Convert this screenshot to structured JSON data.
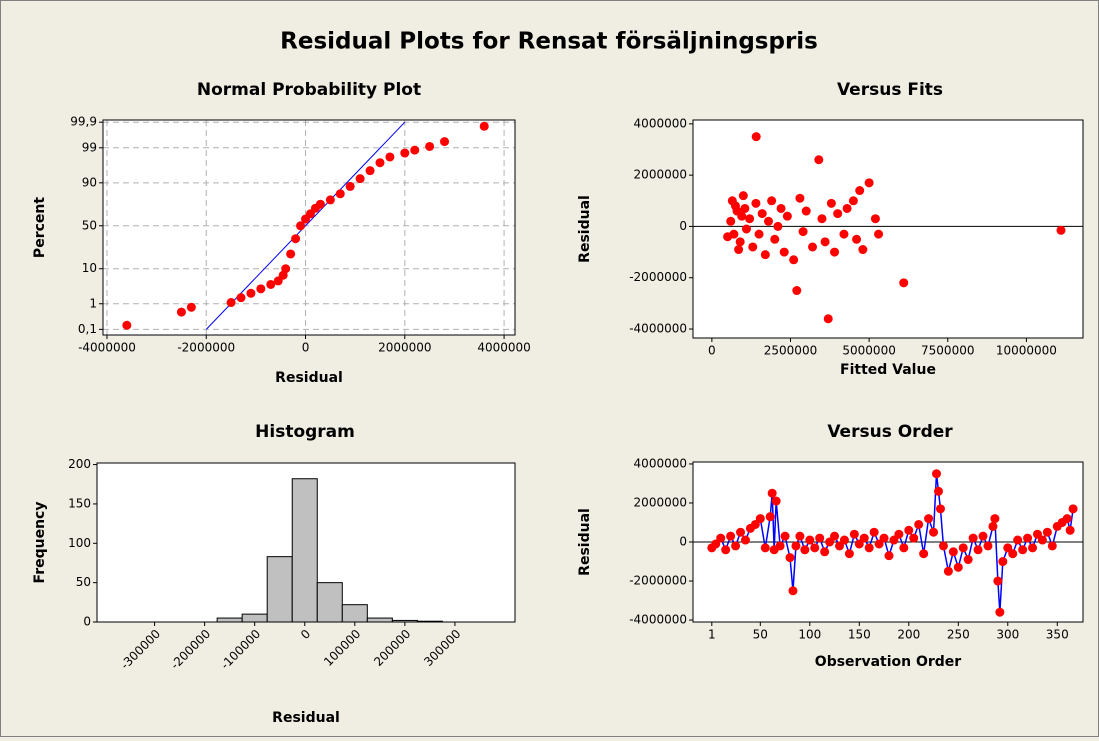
{
  "title": "Residual Plots for Rensat försäljningspris",
  "chart_data": [
    {
      "type": "scatter",
      "title": "Normal Probability Plot",
      "xlabel": "Residual",
      "ylabel": "Percent",
      "yscale": "probability",
      "grid": true,
      "color": "#ff0000",
      "xlim": [
        -4080000,
        4220000
      ],
      "xticks": [
        -4000000,
        -2000000,
        0,
        2000000,
        4000000
      ],
      "ylim": [
        0.056,
        99.92
      ],
      "yticks": [
        {
          "value": 0.1,
          "label": "0,1"
        },
        1,
        10,
        50,
        90,
        99,
        {
          "value": 99.9,
          "label": "99,9"
        }
      ],
      "x": [
        -3600000,
        -2500000,
        -2300000,
        -1500000,
        -1300000,
        -1100000,
        -900000,
        -700000,
        -550000,
        -450000,
        -400000,
        -300000,
        -200000,
        -100000,
        0,
        100000,
        200000,
        300000,
        500000,
        700000,
        900000,
        1100000,
        1300000,
        1500000,
        1700000,
        2000000,
        2200000,
        2500000,
        2800000,
        3600000
      ],
      "y": [
        0.15,
        0.5,
        0.75,
        1.1,
        1.6,
        2.2,
        3,
        4,
        5,
        7,
        10,
        20,
        35,
        50,
        58,
        64,
        70,
        74,
        78,
        83,
        88,
        92,
        95,
        97,
        98,
        98.5,
        98.8,
        99.1,
        99.4,
        99.85
      ],
      "reference_line": {
        "x": [
          -2000000,
          2000000
        ],
        "y": [
          0.1,
          99.9
        ],
        "color": "#0000ff"
      }
    },
    {
      "type": "scatter",
      "title": "Versus Fits",
      "xlabel": "Fitted Value",
      "ylabel": "Residual",
      "color": "#ff0000",
      "xlim": [
        -600000,
        11800000
      ],
      "xticks": [
        0,
        2500000,
        5000000,
        7500000,
        10000000
      ],
      "ylim": [
        -4350000,
        4150000
      ],
      "yticks": [
        -4000000,
        -2000000,
        0,
        2000000,
        4000000
      ],
      "reference_y": 0,
      "x": [
        600000,
        700000,
        800000,
        900000,
        1000000,
        1100000,
        1200000,
        1300000,
        1400000,
        1410000,
        1500000,
        1600000,
        1700000,
        1800000,
        1900000,
        2000000,
        2100000,
        2200000,
        2300000,
        2400000,
        2600000,
        2700000,
        2800000,
        2900000,
        3000000,
        3200000,
        3400000,
        3500000,
        3600000,
        3700000,
        3800000,
        3900000,
        4000000,
        4200000,
        4300000,
        4500000,
        4600000,
        4700000,
        4800000,
        5000000,
        5200000,
        5300000,
        6100000,
        11100000,
        500000,
        650000,
        750000,
        850000,
        950000,
        1050000
      ],
      "y": [
        200000,
        -300000,
        600000,
        -600000,
        1200000,
        -100000,
        300000,
        -800000,
        900000,
        3500000,
        -300000,
        500000,
        -1100000,
        200000,
        1000000,
        -500000,
        0,
        700000,
        -1000000,
        400000,
        -1300000,
        -2500000,
        1100000,
        -200000,
        600000,
        -800000,
        2600000,
        300000,
        -600000,
        -3600000,
        900000,
        -1000000,
        500000,
        -300000,
        700000,
        1000000,
        -500000,
        1400000,
        -900000,
        1700000,
        300000,
        -300000,
        -2200000,
        -150000,
        -400000,
        1000000,
        800000,
        -900000,
        400000,
        700000
      ]
    },
    {
      "type": "histogram",
      "title": "Histogram",
      "xlabel": "Residual",
      "ylabel": "Frequency",
      "color": "#c0c0c0",
      "xtick_rotation": -45,
      "xlim": [
        -415000,
        420000
      ],
      "xticks": [
        -300000,
        -200000,
        -100000,
        0,
        100000,
        200000,
        300000
      ],
      "ylim": [
        0,
        202
      ],
      "yticks": [
        0,
        50,
        100,
        150,
        200
      ],
      "bins": [
        -175000,
        -125000,
        -75000,
        -25000,
        25000,
        75000,
        125000,
        175000,
        225000,
        275000
      ],
      "values": [
        5,
        10,
        83,
        182,
        50,
        22,
        5,
        2,
        1
      ]
    },
    {
      "type": "line",
      "title": "Versus Order",
      "xlabel": "Observation Order",
      "ylabel": "Residual",
      "color": "#ff0000",
      "line_color": "#0000ff",
      "xlim": [
        -18,
        376
      ],
      "xticks": [
        1,
        50,
        100,
        150,
        200,
        250,
        300,
        350
      ],
      "ylim": [
        -4100000,
        4100000
      ],
      "yticks": [
        -4000000,
        -2000000,
        0,
        2000000,
        4000000
      ],
      "reference_y": 0,
      "x": [
        1,
        5,
        10,
        15,
        20,
        25,
        30,
        35,
        40,
        45,
        50,
        55,
        60,
        62,
        64,
        66,
        70,
        75,
        80,
        83,
        86,
        90,
        95,
        100,
        105,
        110,
        115,
        120,
        125,
        130,
        135,
        140,
        145,
        150,
        155,
        160,
        165,
        170,
        175,
        180,
        185,
        190,
        195,
        200,
        205,
        210,
        215,
        220,
        225,
        228,
        230,
        232,
        235,
        240,
        245,
        250,
        255,
        260,
        265,
        270,
        275,
        280,
        285,
        287,
        290,
        292,
        295,
        300,
        305,
        310,
        315,
        320,
        325,
        330,
        335,
        340,
        345,
        350,
        355,
        360,
        363,
        366
      ],
      "y": [
        -300000,
        -100000,
        200000,
        -400000,
        300000,
        -200000,
        500000,
        100000,
        700000,
        900000,
        1200000,
        -300000,
        1300000,
        2500000,
        -400000,
        2100000,
        -200000,
        300000,
        -800000,
        -2500000,
        -200000,
        300000,
        -400000,
        100000,
        -300000,
        200000,
        -500000,
        0,
        300000,
        -200000,
        100000,
        -600000,
        400000,
        -100000,
        200000,
        -300000,
        500000,
        -100000,
        200000,
        -700000,
        100000,
        400000,
        -300000,
        600000,
        200000,
        900000,
        -600000,
        1200000,
        500000,
        3500000,
        2600000,
        1700000,
        -200000,
        -1500000,
        -500000,
        -1300000,
        -300000,
        -900000,
        200000,
        -400000,
        300000,
        -200000,
        800000,
        1200000,
        -2000000,
        -3600000,
        -1000000,
        -300000,
        -600000,
        100000,
        -400000,
        200000,
        -300000,
        400000,
        100000,
        500000,
        -200000,
        800000,
        1000000,
        1200000,
        600000,
        1700000
      ]
    }
  ]
}
